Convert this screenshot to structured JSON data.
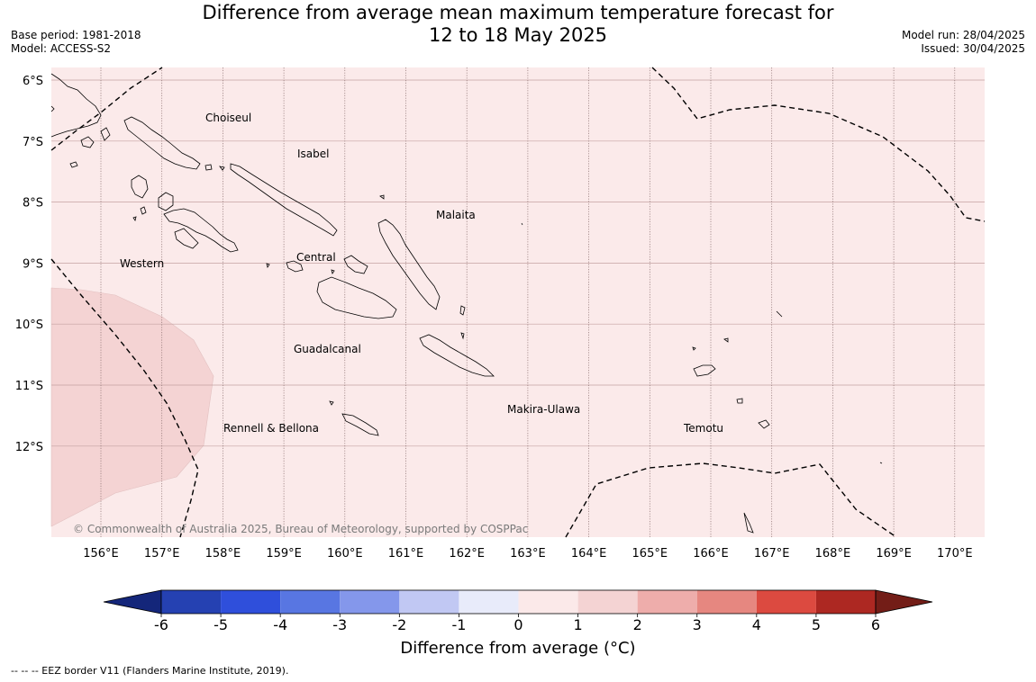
{
  "header": {
    "title_line1": "Difference from average mean maximum temperature forecast for",
    "title_line2": "12 to 18 May 2025",
    "base_period": "Base period: 1981-2018",
    "model": "Model: ACCESS-S2",
    "model_run": "Model run: 28/04/2025",
    "issued": "Issued: 30/04/2025"
  },
  "map": {
    "lat_labels": [
      "6°S",
      "7°S",
      "8°S",
      "9°S",
      "10°S",
      "11°S",
      "12°S"
    ],
    "lon_labels": [
      "156°E",
      "157°E",
      "158°E",
      "159°E",
      "160°E",
      "161°E",
      "162°E",
      "163°E",
      "164°E",
      "165°E",
      "166°E",
      "167°E",
      "168°E",
      "169°E",
      "170°E"
    ],
    "region_labels": [
      "Choiseul",
      "Isabel",
      "Malaita",
      "Western",
      "Central",
      "Guadalcanal",
      "Rennell & Bellona",
      "Makira-Ulawa",
      "Temotu"
    ],
    "copyright": "© Commonwealth of Australia 2025, Bureau of Meteorology, supported by COSPPac",
    "background_anomaly": "0 to 1",
    "sw_anomaly": "1 to 2"
  },
  "colorbar": {
    "ticks": [
      "-6",
      "-5",
      "-4",
      "-3",
      "-2",
      "-1",
      "0",
      "1",
      "2",
      "3",
      "4",
      "5",
      "6"
    ],
    "colors": [
      "#14267a",
      "#2541b2",
      "#2f4fdb",
      "#5876e2",
      "#8497eb",
      "#c1c8f3",
      "#e8ebfa",
      "#fbe9e9",
      "#f4d3d3",
      "#eeadab",
      "#e68780",
      "#dc4a40",
      "#ad2822",
      "#731d17"
    ],
    "title": "Difference from average (°C)"
  },
  "footnote": "--  --  -- EEZ border V11 (Flanders Marine Institute, 2019).",
  "colors": {
    "sea_bg": "#fbeaea",
    "warm_patch": "#f4d5d5",
    "grid": "#b09090"
  }
}
